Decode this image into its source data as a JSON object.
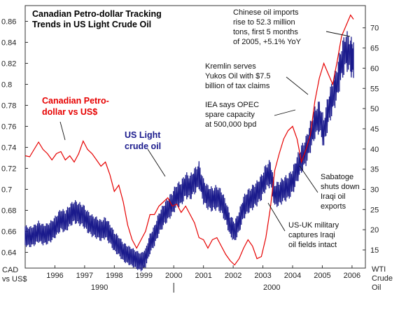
{
  "chart_data": {
    "type": "line",
    "title_lines": [
      "Canadian Petro-dollar Tracking",
      "Trends in US Light Crude Oil"
    ],
    "left_axis": {
      "label_lines": [
        "CAD",
        "vs US$"
      ],
      "ticks": [
        "0.86",
        "0.84",
        "0.82",
        "0.8",
        "0.78",
        "0.76",
        "0.74",
        "0.72",
        "0.7",
        "0.68",
        "0.66",
        "0.64"
      ],
      "tick_values": [
        0.86,
        0.84,
        0.82,
        0.8,
        0.78,
        0.76,
        0.74,
        0.72,
        0.7,
        0.68,
        0.66,
        0.64
      ],
      "range": [
        0.625,
        0.875
      ]
    },
    "right_axis": {
      "label_lines": [
        "WTI",
        "Crude",
        "Oil"
      ],
      "ticks": [
        "70",
        "65",
        "60",
        "55",
        "50",
        "45",
        "40",
        "35",
        "30",
        "25",
        "20",
        "15"
      ],
      "tick_values": [
        70,
        65,
        60,
        55,
        50,
        45,
        40,
        35,
        30,
        25,
        20,
        15
      ],
      "range": [
        10.5,
        75.5
      ]
    },
    "x_axis": {
      "range": [
        1995.0,
        2006.45
      ],
      "year_labels": [
        "1996",
        "1997",
        "1998",
        "1999",
        "2000",
        "2001",
        "2002",
        "2003",
        "2004",
        "2005",
        "2006"
      ],
      "year_values": [
        1996,
        1997,
        1998,
        1999,
        2000,
        2001,
        2002,
        2003,
        2004,
        2005,
        2006
      ],
      "decade_labels": [
        "1990",
        "2000"
      ],
      "decade_positions": [
        1997.5,
        2003.3
      ],
      "decade_divider": 2000
    },
    "series": [
      {
        "name": "Canadian Petro-dollar vs US$",
        "label_lines": [
          "Canadian Petro-",
          "dollar vs US$"
        ],
        "axis": "left",
        "color": "#e60000",
        "x": [
          1995.0,
          1995.15,
          1995.3,
          1995.45,
          1995.6,
          1995.75,
          1995.9,
          1996.05,
          1996.2,
          1996.35,
          1996.5,
          1996.65,
          1996.8,
          1996.95,
          1997.1,
          1997.25,
          1997.4,
          1997.55,
          1997.7,
          1997.85,
          1998.0,
          1998.15,
          1998.3,
          1998.45,
          1998.6,
          1998.75,
          1998.9,
          1999.05,
          1999.2,
          1999.35,
          1999.5,
          1999.65,
          1999.8,
          1999.95,
          2000.1,
          2000.25,
          2000.4,
          2000.55,
          2000.7,
          2000.85,
          2001.0,
          2001.15,
          2001.3,
          2001.45,
          2001.6,
          2001.75,
          2001.9,
          2002.05,
          2002.2,
          2002.35,
          2002.5,
          2002.65,
          2002.8,
          2002.95,
          2003.1,
          2003.25,
          2003.4,
          2003.55,
          2003.7,
          2003.85,
          2004.0,
          2004.15,
          2004.3,
          2004.45,
          2004.6,
          2004.75,
          2004.9,
          2005.05,
          2005.2,
          2005.35,
          2005.5,
          2005.65,
          2005.8,
          2005.95,
          2006.05
        ],
        "y": [
          0.732,
          0.731,
          0.738,
          0.745,
          0.738,
          0.734,
          0.728,
          0.734,
          0.736,
          0.728,
          0.732,
          0.726,
          0.734,
          0.746,
          0.738,
          0.734,
          0.728,
          0.722,
          0.726,
          0.714,
          0.698,
          0.704,
          0.688,
          0.666,
          0.652,
          0.644,
          0.652,
          0.66,
          0.676,
          0.676,
          0.684,
          0.688,
          0.692,
          0.684,
          0.686,
          0.678,
          0.684,
          0.676,
          0.668,
          0.654,
          0.652,
          0.644,
          0.652,
          0.654,
          0.646,
          0.638,
          0.632,
          0.628,
          0.634,
          0.644,
          0.652,
          0.646,
          0.634,
          0.636,
          0.654,
          0.682,
          0.718,
          0.734,
          0.748,
          0.756,
          0.76,
          0.748,
          0.726,
          0.738,
          0.752,
          0.784,
          0.806,
          0.82,
          0.81,
          0.8,
          0.822,
          0.846,
          0.856,
          0.866,
          0.862
        ]
      },
      {
        "name": "US Light crude oil",
        "label_lines": [
          "US Light",
          "crude oil"
        ],
        "axis": "right",
        "color": "#1a1a8c",
        "x": [
          1995.0,
          1995.15,
          1995.3,
          1995.45,
          1995.6,
          1995.75,
          1995.9,
          1996.05,
          1996.2,
          1996.35,
          1996.5,
          1996.65,
          1996.8,
          1996.95,
          1997.1,
          1997.25,
          1997.4,
          1997.55,
          1997.7,
          1997.85,
          1998.0,
          1998.15,
          1998.3,
          1998.45,
          1998.6,
          1998.75,
          1998.9,
          1999.05,
          1999.2,
          1999.35,
          1999.5,
          1999.65,
          1999.8,
          1999.95,
          2000.1,
          2000.25,
          2000.4,
          2000.55,
          2000.7,
          2000.85,
          2001.0,
          2001.15,
          2001.3,
          2001.45,
          2001.6,
          2001.75,
          2001.9,
          2002.05,
          2002.2,
          2002.35,
          2002.5,
          2002.65,
          2002.8,
          2002.95,
          2003.1,
          2003.25,
          2003.4,
          2003.55,
          2003.7,
          2003.85,
          2004.0,
          2004.15,
          2004.3,
          2004.45,
          2004.6,
          2004.75,
          2004.9,
          2005.05,
          2005.2,
          2005.35,
          2005.5,
          2005.65,
          2005.8,
          2005.95,
          2006.05
        ],
        "y": [
          18.5,
          18.2,
          18.6,
          19.5,
          18.8,
          19.0,
          19.8,
          21.0,
          22.5,
          22.0,
          23.5,
          24.5,
          24.0,
          23.5,
          22.0,
          21.0,
          20.5,
          19.8,
          20.5,
          19.0,
          17.0,
          16.0,
          14.5,
          13.8,
          13.2,
          12.5,
          12.0,
          13.0,
          16.5,
          18.5,
          21.5,
          23.5,
          25.0,
          26.5,
          28.5,
          29.0,
          31.0,
          30.5,
          32.0,
          33.5,
          29.5,
          28.0,
          27.5,
          28.0,
          27.0,
          24.5,
          21.0,
          19.5,
          22.0,
          25.5,
          27.0,
          28.0,
          29.0,
          30.5,
          33.0,
          34.0,
          28.5,
          29.0,
          30.0,
          30.5,
          32.0,
          35.0,
          37.5,
          39.5,
          43.0,
          46.5,
          48.0,
          44.0,
          49.5,
          53.0,
          56.5,
          61.5,
          64.5,
          63.0,
          62.0
        ]
      }
    ],
    "annotations": [
      {
        "id": "china",
        "lines": [
          "Chinese oil imports",
          "rise to 52.3 million",
          "tons, first 5 months",
          "of 2005, +5.1% YoY"
        ]
      },
      {
        "id": "yukos",
        "lines": [
          "Kremlin serves",
          "Yukos Oil with $7.5",
          "billion of tax claims"
        ]
      },
      {
        "id": "opec",
        "lines": [
          "IEA says OPEC",
          "spare capacity",
          "at 500,000 bpd"
        ]
      },
      {
        "id": "sabotage",
        "lines": [
          "Sabatoge",
          "shuts down",
          "Iraqi oil",
          "exports"
        ]
      },
      {
        "id": "iraq",
        "lines": [
          "US-UK military",
          "captures Iraqi",
          "oil fields intact"
        ]
      }
    ],
    "grid": false,
    "legend": "inline labels"
  }
}
